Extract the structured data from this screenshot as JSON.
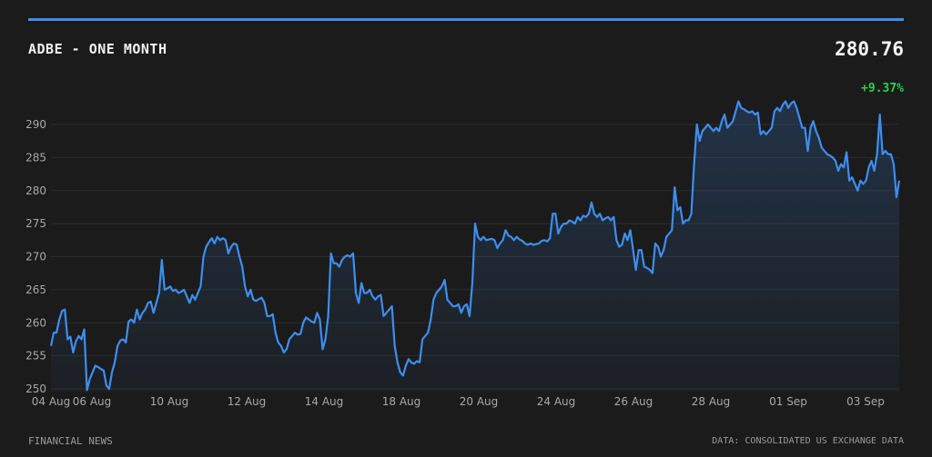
{
  "header": {
    "ticker_title": "ADBE - ONE MONTH",
    "price": "280.76",
    "change": "+9.37%"
  },
  "footer": {
    "left": "FINANCIAL NEWS",
    "right": "DATA: CONSOLIDATED US EXCHANGE DATA"
  },
  "colors": {
    "accent": "#3d8ef0",
    "line": "#3d8ef0",
    "positive": "#2fcf4a",
    "background": "#1b1b1b"
  },
  "chart_data": {
    "type": "area",
    "title": "ADBE - ONE MONTH",
    "xlabel": "",
    "ylabel": "",
    "ylim": [
      250,
      290
    ],
    "yticks": [
      250,
      255,
      260,
      265,
      270,
      275,
      280,
      285,
      290
    ],
    "xticks": [
      "04 Aug",
      "06 Aug",
      "10 Aug",
      "12 Aug",
      "14 Aug",
      "18 Aug",
      "20 Aug",
      "24 Aug",
      "26 Aug",
      "28 Aug",
      "01 Sep",
      "03 Sep"
    ],
    "grid": true,
    "series": [
      {
        "values": [
          256.5,
          258.5,
          258.5,
          260.5,
          261.8,
          262.0,
          257.5,
          257.9,
          255.5,
          257.2,
          258.0,
          257.5,
          259.0,
          249.8,
          251.5,
          252.5,
          253.5,
          253.3,
          253.0,
          252.8,
          250.5,
          250.0,
          252.5,
          254.0,
          256.5,
          257.3,
          257.5,
          257.0,
          260.2,
          260.5,
          260.0,
          262.0,
          260.5,
          261.5,
          262.0,
          263.0,
          263.2,
          261.5,
          263.0,
          264.5,
          269.5,
          265.0,
          265.2,
          265.5,
          264.8,
          265.0,
          264.5,
          264.7,
          265.0,
          264.0,
          263.0,
          264.2,
          263.5,
          264.5,
          265.5,
          270.0,
          271.5,
          272.2,
          272.8,
          272.0,
          273.0,
          272.5,
          272.8,
          272.5,
          270.5,
          271.5,
          272.0,
          271.8,
          270.0,
          268.5,
          265.5,
          264.0,
          265.0,
          263.5,
          263.3,
          263.6,
          263.8,
          263.0,
          261.0,
          261.0,
          261.3,
          258.5,
          257.0,
          256.5,
          255.5,
          256.0,
          257.5,
          258.0,
          258.5,
          258.2,
          258.3,
          260.0,
          260.8,
          260.5,
          260.2,
          260.0,
          261.5,
          260.5,
          256.0,
          257.5,
          261.0,
          270.5,
          269.0,
          269.0,
          268.5,
          269.5,
          270.0,
          270.2,
          270.0,
          270.5,
          264.5,
          263.0,
          266.0,
          264.5,
          264.5,
          265.0,
          264.0,
          263.5,
          264.0,
          264.2,
          261.0,
          261.5,
          262.0,
          262.5,
          256.5,
          254.0,
          252.5,
          252.0,
          253.5,
          254.5,
          254.0,
          253.8,
          254.2,
          254.0,
          257.5,
          258.0,
          258.5,
          260.5,
          263.5,
          264.5,
          265.0,
          265.5,
          266.5,
          263.5,
          263.0,
          262.5,
          262.5,
          262.8,
          261.5,
          262.5,
          262.8,
          261.0,
          266.0,
          275.0,
          273.0,
          272.5,
          273.0,
          272.5,
          272.6,
          272.7,
          272.5,
          271.3,
          272.0,
          272.5,
          274.0,
          273.2,
          273.0,
          272.5,
          273.0,
          272.6,
          272.4,
          272.0,
          271.8,
          272.0,
          271.8,
          271.9,
          272.0,
          272.4,
          272.5,
          272.3,
          272.8,
          276.5,
          276.5,
          273.5,
          274.5,
          275.0,
          275.0,
          275.5,
          275.3,
          275.0,
          276.0,
          275.5,
          276.2,
          276.0,
          276.5,
          278.2,
          276.5,
          276.0,
          276.5,
          275.5,
          275.8,
          276.0,
          275.5,
          276.0,
          272.5,
          271.5,
          271.8,
          273.5,
          272.5,
          274.0,
          271.0,
          268.0,
          271.0,
          271.0,
          268.5,
          268.3,
          268.0,
          267.5,
          272.0,
          271.5,
          270.0,
          271.0,
          273.0,
          273.5,
          274.0,
          280.5,
          277.0,
          277.5,
          275.0,
          275.5,
          275.5,
          276.5,
          284.0,
          290.0,
          287.5,
          289.0,
          289.5,
          290.0,
          289.5,
          289.0,
          289.5,
          289.0,
          290.5,
          291.5,
          289.5,
          290.0,
          290.5,
          292.0,
          293.5,
          292.5,
          292.3,
          292.0,
          291.8,
          292.0,
          291.5,
          291.8,
          288.5,
          289.0,
          288.5,
          289.0,
          289.5,
          292.0,
          292.5,
          292.0,
          293.0,
          293.5,
          292.5,
          293.2,
          293.5,
          292.5,
          291.0,
          289.5,
          289.5,
          286.0,
          289.5,
          290.5,
          289.0,
          288.0,
          286.5,
          286.0,
          285.5,
          285.3,
          285.0,
          284.5,
          283.0,
          284.0,
          283.5,
          285.8,
          281.5,
          282.0,
          281.0,
          280.0,
          281.5,
          281.0,
          281.5,
          283.5,
          284.5,
          283.0,
          285.5,
          291.5,
          285.5,
          286.0,
          285.5,
          285.5,
          284.0,
          279.0,
          281.5
        ]
      }
    ]
  }
}
